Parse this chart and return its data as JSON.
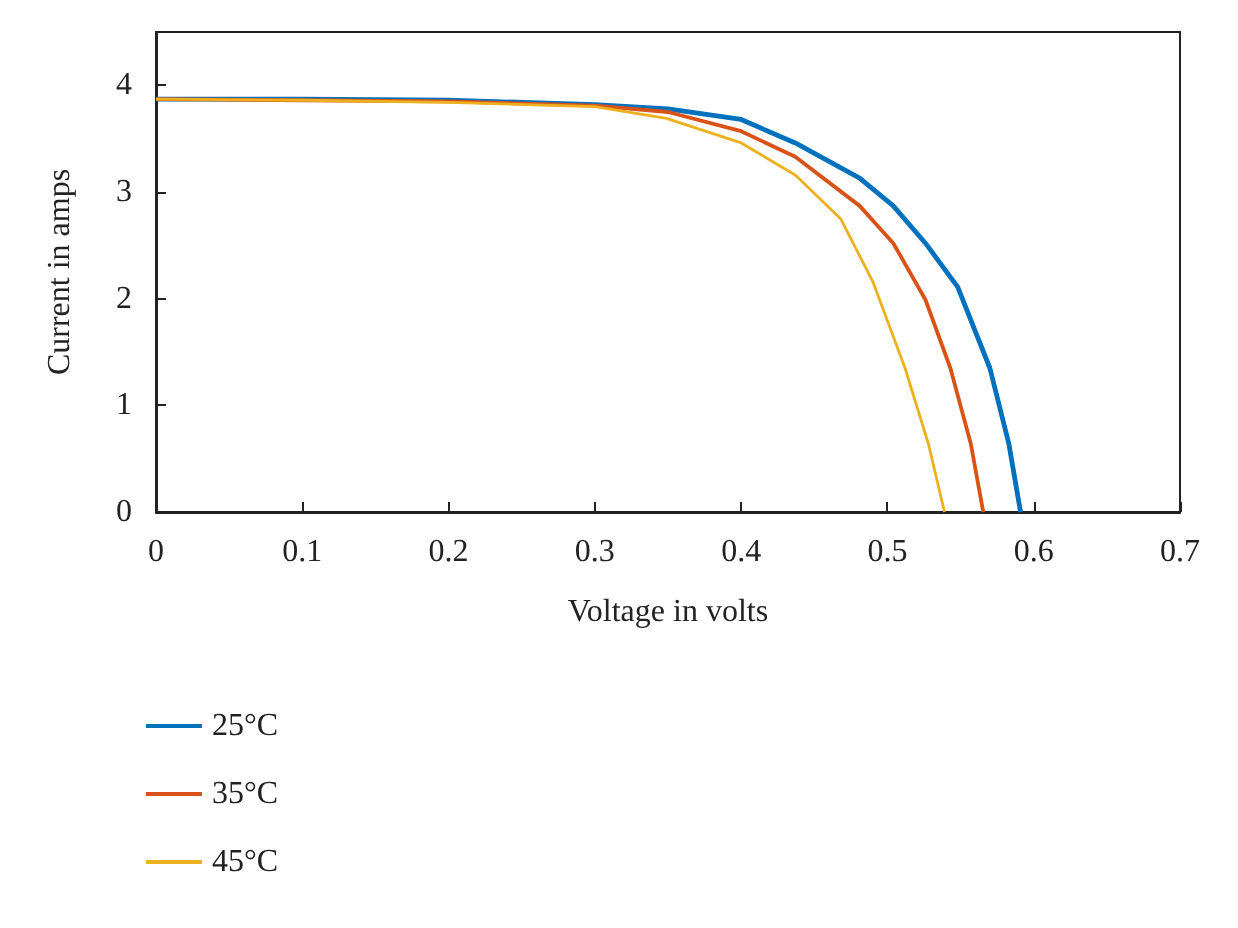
{
  "chart_data": {
    "type": "line",
    "xlabel": "Voltage in volts",
    "ylabel": "Current in amps",
    "xlim": [
      0,
      0.7
    ],
    "ylim": [
      0,
      4.5
    ],
    "xticks": [
      0,
      0.1,
      0.2,
      0.3,
      0.4,
      0.5,
      0.6,
      0.7
    ],
    "yticks": [
      0,
      1,
      2,
      3,
      4
    ],
    "grid": false,
    "legend": "bottom left",
    "marker": "none",
    "line_style": "solid",
    "series": [
      {
        "name": "25°C",
        "color": "#0072bd",
        "x": [
          0,
          0.1,
          0.2,
          0.3,
          0.35,
          0.4,
          0.437,
          0.481,
          0.504,
          0.526,
          0.548,
          0.57,
          0.583,
          0.591
        ],
        "values": [
          3.87,
          3.87,
          3.86,
          3.82,
          3.78,
          3.68,
          3.46,
          3.13,
          2.87,
          2.52,
          2.11,
          1.35,
          0.64,
          0
        ]
      },
      {
        "name": "35°C",
        "color": "#d95319",
        "x": [
          0,
          0.1,
          0.2,
          0.3,
          0.35,
          0.4,
          0.437,
          0.481,
          0.504,
          0.526,
          0.543,
          0.557,
          0.5655
        ],
        "values": [
          3.87,
          3.86,
          3.85,
          3.81,
          3.75,
          3.57,
          3.33,
          2.87,
          2.52,
          1.99,
          1.35,
          0.64,
          0
        ]
      },
      {
        "name": "45°C",
        "color": "#edb120",
        "x": [
          0,
          0.1,
          0.2,
          0.3,
          0.349,
          0.4,
          0.437,
          0.468,
          0.49,
          0.512,
          0.528,
          0.539
        ],
        "values": [
          3.87,
          3.86,
          3.84,
          3.8,
          3.69,
          3.46,
          3.16,
          2.75,
          2.16,
          1.35,
          0.64,
          0
        ]
      }
    ]
  }
}
